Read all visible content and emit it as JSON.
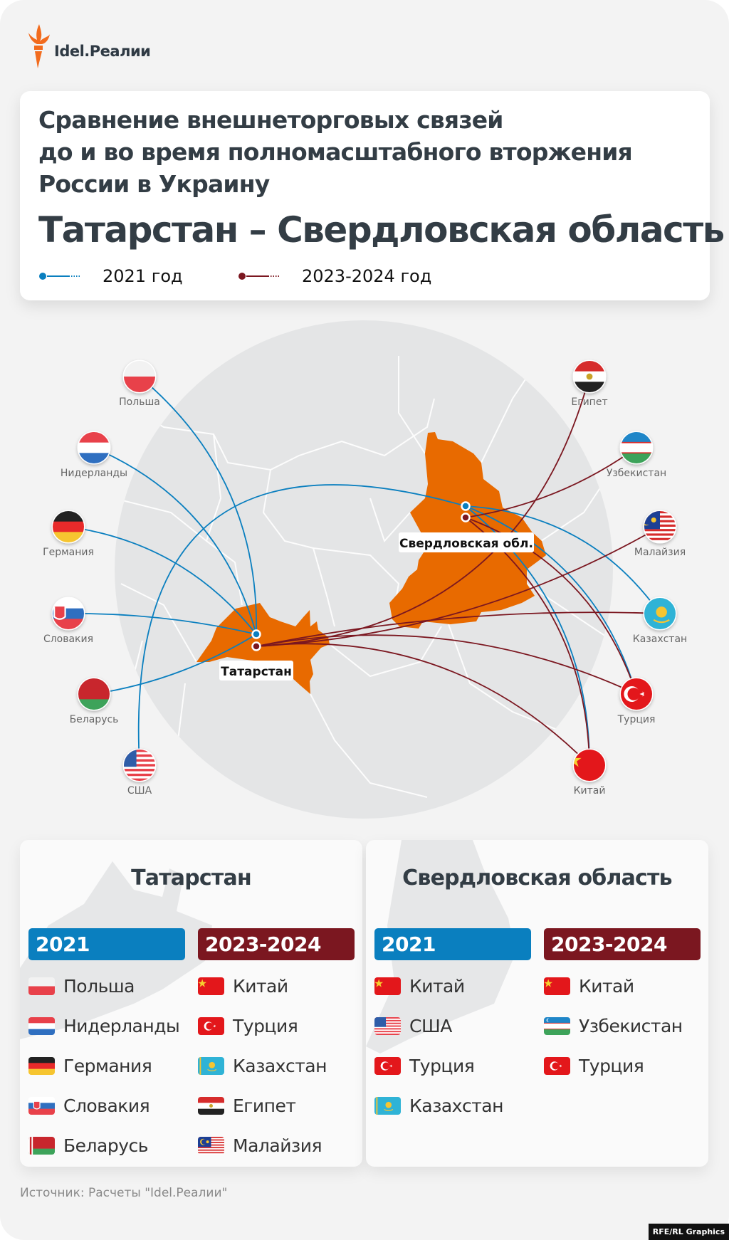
{
  "brand": {
    "logo_text": "Idel.Реалии",
    "accent": "#f26b1d"
  },
  "header": {
    "title_lines": [
      "Сравнение внешнеторговых связей",
      "до и во время полномасштабного вторжения",
      "России в Украину"
    ],
    "subtitle": "Татарстан – Свердловская область",
    "legend": [
      {
        "label": "2021 год",
        "color": "#0a7fbf"
      },
      {
        "label": "2023-2024 год",
        "color": "#7b1720"
      }
    ]
  },
  "colors": {
    "blue": "#0a7fbf",
    "maroon": "#7b1720",
    "region": "#e86a00",
    "map": "#e4e5e6"
  },
  "map": {
    "regions": [
      {
        "id": "tat",
        "label": "Татарстан"
      },
      {
        "id": "sve",
        "label": "Свердловская обл."
      }
    ],
    "countries": [
      {
        "id": "pl",
        "name": "Польша",
        "flag": "poland-flag"
      },
      {
        "id": "nl",
        "name": "Нидерланды",
        "flag": "netherlands-flag"
      },
      {
        "id": "de",
        "name": "Германия",
        "flag": "germany-flag"
      },
      {
        "id": "sk",
        "name": "Словакия",
        "flag": "slovakia-flag"
      },
      {
        "id": "by",
        "name": "Беларусь",
        "flag": "belarus-flag"
      },
      {
        "id": "us",
        "name": "США",
        "flag": "usa-flag"
      },
      {
        "id": "eg",
        "name": "Египет",
        "flag": "egypt-flag"
      },
      {
        "id": "uz",
        "name": "Узбекистан",
        "flag": "uzbekistan-flag"
      },
      {
        "id": "my",
        "name": "Малайзия",
        "flag": "malaysia-flag"
      },
      {
        "id": "kz",
        "name": "Казахстан",
        "flag": "kazakhstan-flag"
      },
      {
        "id": "tr",
        "name": "Турция",
        "flag": "turkey-flag"
      },
      {
        "id": "cn",
        "name": "Китай",
        "flag": "china-flag"
      }
    ],
    "links": [
      {
        "from": "tat",
        "period": "2021",
        "to": [
          "pl",
          "nl",
          "de",
          "sk",
          "by"
        ]
      },
      {
        "from": "sve",
        "period": "2021",
        "to": [
          "us",
          "cn",
          "tr",
          "kz"
        ]
      },
      {
        "from": "tat",
        "period": "2023-2024",
        "to": [
          "cn",
          "tr",
          "kz",
          "eg",
          "my"
        ]
      },
      {
        "from": "sve",
        "period": "2023-2024",
        "to": [
          "cn",
          "uz",
          "tr"
        ]
      }
    ]
  },
  "tables": [
    {
      "title": "Татарстан",
      "columns": [
        {
          "header": "2021",
          "items": [
            {
              "name": "Польша",
              "flag": "pl"
            },
            {
              "name": "Нидерланды",
              "flag": "nl"
            },
            {
              "name": "Германия",
              "flag": "de"
            },
            {
              "name": "Словакия",
              "flag": "sk"
            },
            {
              "name": "Беларусь",
              "flag": "by"
            }
          ]
        },
        {
          "header": "2023-2024",
          "items": [
            {
              "name": "Китай",
              "flag": "cn"
            },
            {
              "name": "Турция",
              "flag": "tr"
            },
            {
              "name": "Казахстан",
              "flag": "kz"
            },
            {
              "name": "Египет",
              "flag": "eg"
            },
            {
              "name": "Малайзия",
              "flag": "my"
            }
          ]
        }
      ]
    },
    {
      "title": "Свердловская область",
      "columns": [
        {
          "header": "2021",
          "items": [
            {
              "name": "Китай",
              "flag": "cn"
            },
            {
              "name": "США",
              "flag": "us"
            },
            {
              "name": "Турция",
              "flag": "tr"
            },
            {
              "name": "Казахстан",
              "flag": "kz"
            }
          ]
        },
        {
          "header": "2023-2024",
          "items": [
            {
              "name": "Китай",
              "flag": "cn"
            },
            {
              "name": "Узбекистан",
              "flag": "uz"
            },
            {
              "name": "Турция",
              "flag": "tr"
            }
          ]
        }
      ]
    }
  ],
  "footer": {
    "source": "Источник: Расчеты \"Idel.Реалии\"",
    "credit": "RFE/RL Graphics"
  }
}
